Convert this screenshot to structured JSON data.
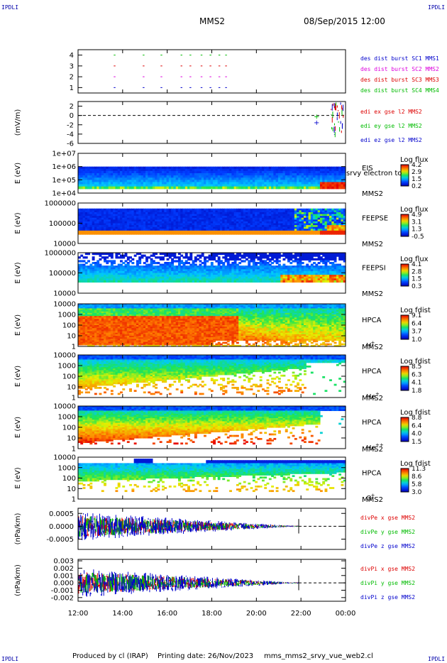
{
  "corner_label": "IPDLI",
  "header": {
    "spacecraft": "MMS2",
    "datetime": "08/Sep/2015 12:00"
  },
  "footer": {
    "produced_by": "Produced by cl (IRAP)",
    "printing_date": "Printing date: 26/Nov/2023",
    "filename": "mms_mms2_srvy_vue_web2.cl"
  },
  "colors": {
    "c1": "#0000cc",
    "c2": "#dd00dd",
    "c3": "#dd0000",
    "c4": "#00bb00",
    "x": "#dd0000",
    "y": "#00bb00",
    "z": "#0000cc"
  },
  "time_axis": {
    "ticks": [
      "12:00",
      "14:00",
      "16:00",
      "18:00",
      "20:00",
      "22:00",
      "00:00"
    ],
    "start_hour": 12,
    "end_hour": 24
  },
  "chart_data": [
    {
      "type": "scatter",
      "panel": "burst",
      "ylim": [
        0.5,
        4.5
      ],
      "yticks": [
        "1",
        "2",
        "3",
        "4"
      ],
      "series": [
        {
          "name": "des dist burst SC1 MMS1",
          "color": "#0000cc",
          "level": 1,
          "times": [
            13.6,
            14.9,
            15.7,
            16.6,
            17.0,
            17.5,
            17.9,
            18.3,
            18.6
          ]
        },
        {
          "name": "des dist burst SC2 MMS2",
          "color": "#dd00dd",
          "level": 2,
          "times": [
            13.6,
            14.9,
            15.7,
            16.6,
            17.0,
            17.5,
            17.9,
            18.3,
            18.6
          ]
        },
        {
          "name": "des dist burst SC3 MMS3",
          "color": "#dd0000",
          "level": 3,
          "times": [
            13.6,
            14.9,
            15.7,
            16.6,
            17.0,
            17.5,
            17.9,
            18.3,
            18.6
          ]
        },
        {
          "name": "des dist burst SC4 MMS4",
          "color": "#00bb00",
          "level": 4,
          "times": [
            13.6,
            14.9,
            15.7,
            16.6,
            17.0,
            17.5,
            17.9,
            18.3,
            18.6
          ]
        }
      ]
    },
    {
      "type": "line",
      "panel": "edi",
      "ylabel": "(mV/m)",
      "ylim": [
        -6,
        3
      ],
      "yticks": [
        "2",
        "0",
        "-2",
        "-4",
        "-6"
      ],
      "series": [
        {
          "name": "edi ex gse l2 MMS2",
          "color": "#dd0000"
        },
        {
          "name": "edi ey gse l2 MMS2",
          "color": "#00bb00"
        },
        {
          "name": "edi ez gse l2 MMS2",
          "color": "#0000cc"
        }
      ]
    },
    {
      "type": "heatmap",
      "panel": "eis",
      "ylabel": "E (eV)",
      "yticks": [
        "1e+07",
        "1e+06",
        "1e+05",
        "1e+04"
      ],
      "instrument": "EIS",
      "spacecraft": "MMS2",
      "overlay": "srvy electron to",
      "colorbar": {
        "label": "Log flux",
        "ticks": [
          "4.2",
          "2.9",
          "1.5",
          "0.2"
        ]
      }
    },
    {
      "type": "heatmap",
      "panel": "feepse",
      "ylabel": "E (eV)",
      "yticks": [
        "1000000",
        "100000",
        "10000"
      ],
      "instrument": "FEEPSE",
      "spacecraft": "MMS2",
      "colorbar": {
        "label": "Log flux",
        "ticks": [
          "4.9",
          "3.1",
          "1.3",
          "-0.5"
        ]
      }
    },
    {
      "type": "heatmap",
      "panel": "feepsi",
      "ylabel": "E (eV)",
      "yticks": [
        "1000000",
        "100000",
        "10000"
      ],
      "instrument": "FEEPSI",
      "spacecraft": "MMS2",
      "colorbar": {
        "label": "Log flux",
        "ticks": [
          "4.1",
          "2.8",
          "1.5",
          "0.3"
        ]
      }
    },
    {
      "type": "heatmap",
      "panel": "hpca_h",
      "ylabel": "E (eV)",
      "yticks": [
        "10000",
        "1000",
        "100",
        "10",
        "1"
      ],
      "instrument": "HPCA",
      "spacecraft": "MMS2",
      "species": "H",
      "charge": "+",
      "colorbar": {
        "label": "Log fdist",
        "ticks": [
          "9.1",
          "6.4",
          "3.7",
          "1.0"
        ]
      }
    },
    {
      "type": "heatmap",
      "panel": "hpca_he",
      "ylabel": "E (eV)",
      "yticks": [
        "10000",
        "1000",
        "100",
        "10",
        "1"
      ],
      "instrument": "HPCA",
      "spacecraft": "MMS2",
      "species": "He",
      "charge": "+",
      "colorbar": {
        "label": "Log fdist",
        "ticks": [
          "8.5",
          "6.3",
          "4.1",
          "1.8"
        ]
      }
    },
    {
      "type": "heatmap",
      "panel": "hpca_he2",
      "ylabel": "E (eV)",
      "yticks": [
        "10000",
        "1000",
        "100",
        "10",
        "1"
      ],
      "instrument": "HPCA",
      "spacecraft": "MMS2",
      "species": "He",
      "charge": "++",
      "colorbar": {
        "label": "Log fdist",
        "ticks": [
          "8.8",
          "6.4",
          "4.0",
          "1.5"
        ]
      }
    },
    {
      "type": "heatmap",
      "panel": "hpca_o",
      "ylabel": "E (eV)",
      "yticks": [
        "10000",
        "1000",
        "100",
        "10",
        "1"
      ],
      "instrument": "HPCA",
      "spacecraft": "MMS2",
      "species": "O",
      "charge": "+",
      "colorbar": {
        "label": "Log fdist",
        "ticks": [
          "11.3",
          "8.6",
          "5.8",
          "3.0"
        ]
      }
    },
    {
      "type": "line",
      "panel": "divpe",
      "ylabel": "(nPa/km)",
      "ylim": [
        -0.0009,
        0.0007
      ],
      "yticks": [
        "0.0005",
        "0.0000",
        "-0.0005"
      ],
      "series": [
        {
          "name": "divPe x gse MMS2",
          "color": "#dd0000"
        },
        {
          "name": "divPe y gse MMS2",
          "color": "#00bb00"
        },
        {
          "name": "divPe z gse MMS2",
          "color": "#0000cc"
        }
      ]
    },
    {
      "type": "line",
      "panel": "divpi",
      "ylabel": "(nPa/km)",
      "ylim": [
        -0.0025,
        0.0032
      ],
      "yticks": [
        "0.003",
        "0.002",
        "0.001",
        "0.000",
        "-0.001",
        "-0.002"
      ],
      "series": [
        {
          "name": "divPi x gse MMS2",
          "color": "#dd0000"
        },
        {
          "name": "divPi y gse MMS2",
          "color": "#00bb00"
        },
        {
          "name": "divPi z gse MMS2",
          "color": "#0000cc"
        }
      ]
    }
  ]
}
